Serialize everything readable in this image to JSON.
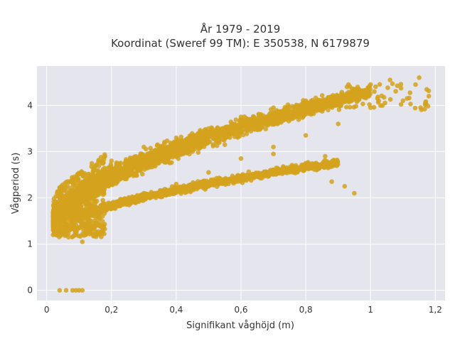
{
  "chart_data": {
    "type": "scatter",
    "title_lines": [
      "År 1979 - 2019",
      "Koordinat (Sweref 99 TM): E 350538, N 6179879"
    ],
    "xlabel": "Signifikant våghöjd (m)",
    "ylabel": "Vågperiod (s)",
    "xlim": [
      -0.03,
      1.23
    ],
    "ylim": [
      -0.22,
      4.85
    ],
    "x_ticks": [
      0,
      0.2,
      0.4,
      0.6,
      0.8,
      1,
      1.2
    ],
    "x_tick_labels": [
      "0",
      "0,2",
      "0,4",
      "0,6",
      "0,8",
      "1",
      "1,2"
    ],
    "y_ticks": [
      0,
      1,
      2,
      3,
      4
    ],
    "y_tick_labels": [
      "0",
      "1",
      "2",
      "3",
      "4"
    ],
    "grid": true,
    "background": "#e5e5ee",
    "marker_color": "#d4a21c",
    "legend": "none",
    "sample_points": [
      [
        0.04,
        0.0
      ],
      [
        0.06,
        0.0
      ],
      [
        0.08,
        0.0
      ],
      [
        0.09,
        0.0
      ],
      [
        0.1,
        0.0
      ],
      [
        0.11,
        0.0
      ],
      [
        0.02,
        1.52
      ],
      [
        0.02,
        1.2
      ],
      [
        0.05,
        1.55
      ],
      [
        0.08,
        1.9
      ],
      [
        0.1,
        2.2
      ],
      [
        0.12,
        2.4
      ],
      [
        0.15,
        2.6
      ],
      [
        0.2,
        2.8
      ],
      [
        0.3,
        3.1
      ],
      [
        0.4,
        3.3
      ],
      [
        0.5,
        3.5
      ],
      [
        0.6,
        3.75
      ],
      [
        0.7,
        3.95
      ],
      [
        0.8,
        4.1
      ],
      [
        0.9,
        4.2
      ],
      [
        0.95,
        4.35
      ],
      [
        1.0,
        4.45
      ],
      [
        1.06,
        4.55
      ],
      [
        1.15,
        4.6
      ],
      [
        1.18,
        4.2
      ],
      [
        1.1,
        4.1
      ],
      [
        1.0,
        3.95
      ],
      [
        0.9,
        3.6
      ],
      [
        0.8,
        3.35
      ],
      [
        0.7,
        3.1
      ],
      [
        0.6,
        2.85
      ],
      [
        0.5,
        2.55
      ],
      [
        0.4,
        2.3
      ],
      [
        0.3,
        2.1
      ],
      [
        0.2,
        1.8
      ],
      [
        0.15,
        1.4
      ],
      [
        0.12,
        1.2
      ],
      [
        0.11,
        1.05
      ],
      [
        0.5,
        2.25
      ],
      [
        0.6,
        2.45
      ],
      [
        0.7,
        2.6
      ],
      [
        0.8,
        2.75
      ],
      [
        0.86,
        2.9
      ],
      [
        0.88,
        2.35
      ],
      [
        0.92,
        2.25
      ],
      [
        0.95,
        2.1
      ],
      [
        0.7,
        2.95
      ],
      [
        0.55,
        3.15
      ],
      [
        0.45,
        3.0
      ]
    ]
  }
}
